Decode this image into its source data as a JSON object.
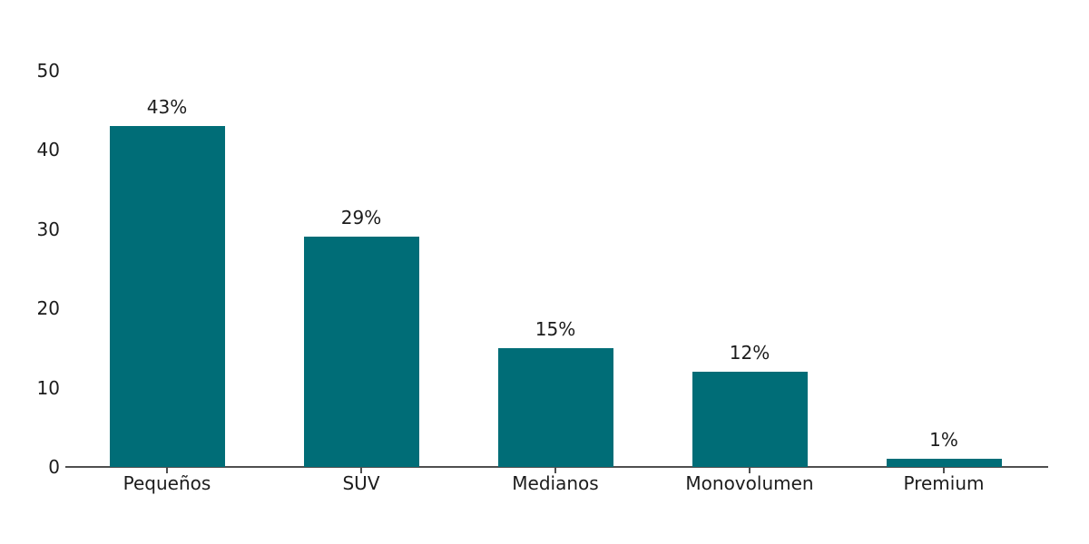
{
  "chart_data": {
    "type": "bar",
    "categories": [
      "Pequeños",
      "SUV",
      "Medianos",
      "Monovolumen",
      "Premium"
    ],
    "values": [
      43,
      29,
      15,
      12,
      1
    ],
    "value_labels": [
      "43%",
      "29%",
      "15%",
      "12%",
      "1%"
    ],
    "yticks": [
      0,
      10,
      20,
      30,
      40,
      50
    ],
    "ylim": [
      0,
      50
    ],
    "title": "",
    "xlabel": "",
    "ylabel": "",
    "legend_position": "none",
    "grid": false,
    "bar_color": "#006d77",
    "axis_color": "#4f4f4f",
    "text_color": "#1c1c1c",
    "background_color": "#ffffff"
  }
}
